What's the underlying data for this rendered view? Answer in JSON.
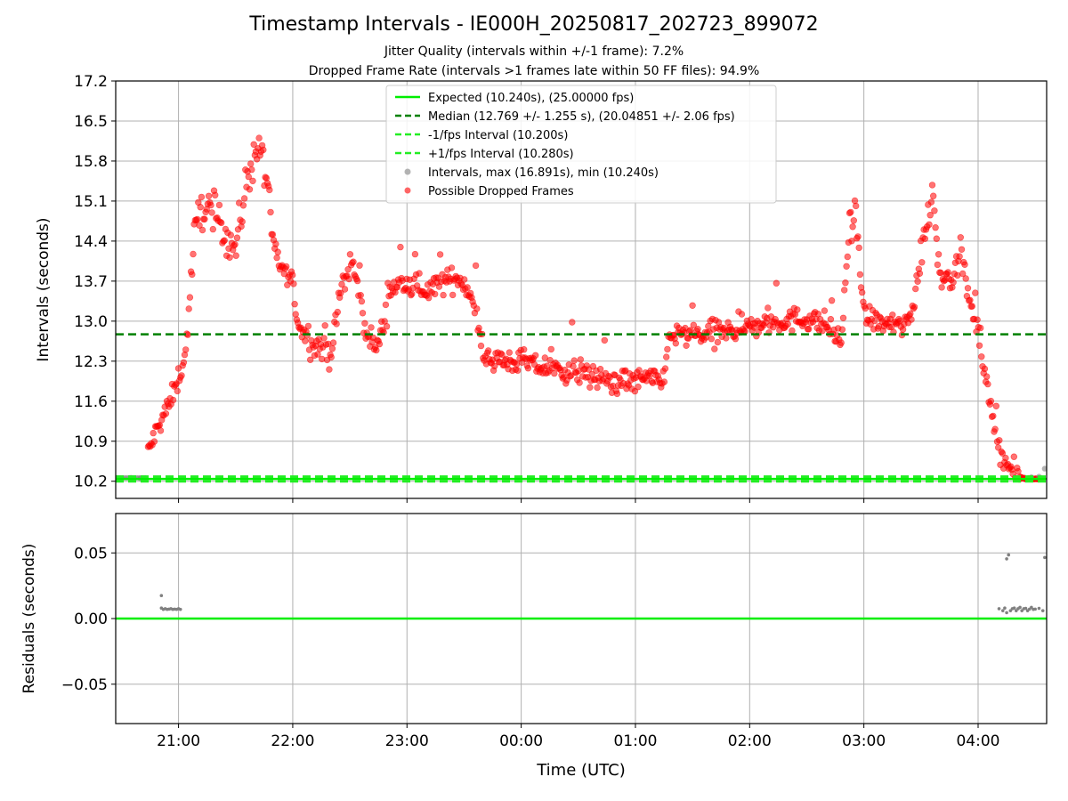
{
  "title": "Timestamp Intervals - IE000H_20250817_202723_899072",
  "subtitle_jitter": "Jitter Quality (intervals within +/-1 frame): 7.2%",
  "subtitle_dropped": "Dropped Frame Rate (intervals >1 frames late within 50 FF files): 94.9%",
  "colors": {
    "expected": "#00ee00",
    "median": "#008000",
    "fps_interval": "#22ee22",
    "intervals": "#808080",
    "dropped": "#ff0000",
    "grid": "#b0b0b0"
  },
  "chart_data": [
    {
      "type": "scatter",
      "panel": "top",
      "xlabel": "",
      "ylabel": "Intervals (seconds)",
      "x_ticks": [
        "21:00",
        "22:00",
        "23:00",
        "00:00",
        "01:00",
        "02:00",
        "03:00",
        "04:00"
      ],
      "y_ticks": [
        "10.2",
        "10.9",
        "11.6",
        "12.3",
        "13.0",
        "13.7",
        "14.4",
        "15.1",
        "15.8",
        "16.5",
        "17.2"
      ],
      "xlim": [
        "20:27",
        "04:36"
      ],
      "ylim": [
        9.9,
        17.2
      ],
      "grid": true,
      "legend_position": "upper-center",
      "lines": [
        {
          "name": "Expected (10.240s), (25.00000 fps)",
          "y": 10.24,
          "style": "solid"
        },
        {
          "name": "Median (12.769 +/- 1.255 s), (20.04851 +/- 2.06 fps)",
          "y": 12.769,
          "style": "dashed"
        },
        {
          "name": "-1/fps Interval (10.200s)",
          "y": 10.2,
          "style": "dashed"
        },
        {
          "name": "+1/fps Interval (10.280s)",
          "y": 10.28,
          "style": "dashed"
        }
      ],
      "series": [
        {
          "name": "Intervals, max (16.891s), min (10.240s)",
          "points": [
            [
              "20:27",
              10.26
            ],
            [
              "20:30",
              10.25
            ],
            [
              "20:35",
              10.26
            ],
            [
              "20:40",
              10.25
            ],
            [
              "04:28",
              10.27
            ],
            [
              "04:32",
              10.28
            ],
            [
              "04:35",
              10.42
            ]
          ]
        },
        {
          "name": "Possible Dropped Frames",
          "profile": [
            [
              "20:44",
              10.7
            ],
            [
              "20:48",
              11.05
            ],
            [
              "20:52",
              11.35
            ],
            [
              "20:56",
              11.6
            ],
            [
              "21:00",
              12.0
            ],
            [
              "21:04",
              12.5
            ],
            [
              "21:08",
              14.4
            ],
            [
              "21:12",
              15.0
            ],
            [
              "21:18",
              14.9
            ],
            [
              "21:24",
              14.6
            ],
            [
              "21:30",
              14.25
            ],
            [
              "21:36",
              15.5
            ],
            [
              "21:42",
              16.1
            ],
            [
              "21:46",
              15.6
            ],
            [
              "21:50",
              14.1
            ],
            [
              "21:55",
              13.9
            ],
            [
              "22:00",
              13.65
            ],
            [
              "22:03",
              12.9
            ],
            [
              "22:08",
              12.75
            ],
            [
              "22:14",
              12.55
            ],
            [
              "22:20",
              12.4
            ],
            [
              "22:26",
              13.7
            ],
            [
              "22:32",
              13.95
            ],
            [
              "22:38",
              12.9
            ],
            [
              "22:44",
              12.5
            ],
            [
              "22:48",
              13.0
            ],
            [
              "22:52",
              13.6
            ],
            [
              "23:00",
              13.65
            ],
            [
              "23:10",
              13.55
            ],
            [
              "23:20",
              13.7
            ],
            [
              "23:28",
              13.75
            ],
            [
              "23:35",
              13.4
            ],
            [
              "23:40",
              12.4
            ],
            [
              "23:50",
              12.3
            ],
            [
              "00:00",
              12.3
            ],
            [
              "00:10",
              12.2
            ],
            [
              "00:20",
              12.15
            ],
            [
              "00:30",
              12.1
            ],
            [
              "00:40",
              12.0
            ],
            [
              "00:50",
              11.95
            ],
            [
              "01:00",
              11.95
            ],
            [
              "01:08",
              12.0
            ],
            [
              "01:14",
              11.9
            ],
            [
              "01:18",
              12.75
            ],
            [
              "01:30",
              12.75
            ],
            [
              "01:45",
              12.8
            ],
            [
              "02:00",
              12.9
            ],
            [
              "02:15",
              13.0
            ],
            [
              "02:30",
              13.05
            ],
            [
              "02:40",
              12.95
            ],
            [
              "02:48",
              12.6
            ],
            [
              "02:52",
              14.5
            ],
            [
              "02:56",
              14.8
            ],
            [
              "03:00",
              13.1
            ],
            [
              "03:10",
              12.95
            ],
            [
              "03:20",
              12.9
            ],
            [
              "03:25",
              13.1
            ],
            [
              "03:30",
              14.2
            ],
            [
              "03:36",
              15.3
            ],
            [
              "03:40",
              13.8
            ],
            [
              "03:46",
              13.75
            ],
            [
              "03:52",
              14.1
            ],
            [
              "03:56",
              13.2
            ],
            [
              "04:00",
              12.8
            ],
            [
              "04:04",
              12.0
            ],
            [
              "04:08",
              11.2
            ],
            [
              "04:12",
              10.7
            ],
            [
              "04:16",
              10.45
            ],
            [
              "04:20",
              10.3
            ],
            [
              "04:25",
              10.24
            ],
            [
              "04:30",
              10.24
            ],
            [
              "04:34",
              10.24
            ]
          ]
        }
      ]
    },
    {
      "type": "scatter",
      "panel": "bottom",
      "xlabel": "Time (UTC)",
      "ylabel": "Residuals (seconds)",
      "x_ticks": [
        "21:00",
        "22:00",
        "23:00",
        "00:00",
        "01:00",
        "02:00",
        "03:00",
        "04:00"
      ],
      "y_ticks": [
        "−0.05",
        "0.00",
        "0.05"
      ],
      "xlim": [
        "20:27",
        "04:36"
      ],
      "ylim": [
        -0.08,
        0.08
      ],
      "grid": true,
      "zero_line_color": "#00ee00",
      "series": [
        {
          "name": "Residuals",
          "points": [
            [
              "20:51",
              0.0175
            ],
            [
              "20:51",
              0.008
            ],
            [
              "20:52",
              0.007
            ],
            [
              "20:53",
              0.0075
            ],
            [
              "20:54",
              0.007
            ],
            [
              "20:55",
              0.0072
            ],
            [
              "20:56",
              0.0075
            ],
            [
              "20:57",
              0.007
            ],
            [
              "20:58",
              0.0072
            ],
            [
              "20:59",
              0.007
            ],
            [
              "21:00",
              0.0075
            ],
            [
              "21:01",
              0.007
            ],
            [
              "04:11",
              0.0075
            ],
            [
              "04:13",
              0.006
            ],
            [
              "04:14",
              0.008
            ],
            [
              "04:15",
              0.0045
            ],
            [
              "04:15",
              0.0455
            ],
            [
              "04:16",
              0.0485
            ],
            [
              "04:17",
              0.006
            ],
            [
              "04:18",
              0.0075
            ],
            [
              "04:19",
              0.008
            ],
            [
              "04:20",
              0.006
            ],
            [
              "04:21",
              0.0075
            ],
            [
              "04:22",
              0.0085
            ],
            [
              "04:23",
              0.006
            ],
            [
              "04:24",
              0.0075
            ],
            [
              "04:25",
              0.0078
            ],
            [
              "04:26",
              0.006
            ],
            [
              "04:27",
              0.0072
            ],
            [
              "04:28",
              0.0085
            ],
            [
              "04:29",
              0.007
            ],
            [
              "04:30",
              0.0072
            ],
            [
              "04:32",
              0.0078
            ],
            [
              "04:34",
              0.006
            ],
            [
              "04:35",
              0.0465
            ]
          ]
        }
      ]
    }
  ]
}
